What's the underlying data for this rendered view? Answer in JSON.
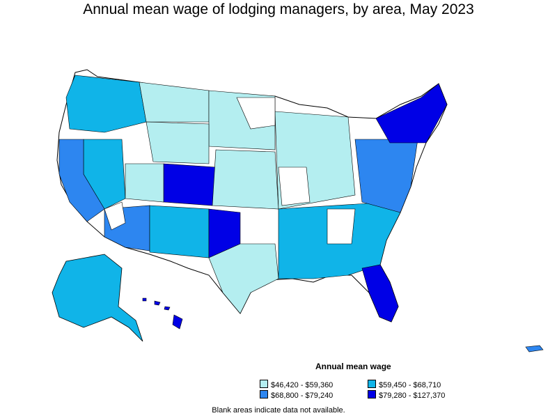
{
  "title": "Annual mean wage of lodging managers, by area, May 2023",
  "legend": {
    "title": "Annual mean wage",
    "items": [
      {
        "label": "$46,420 - $59,360",
        "color": "#b4eef0"
      },
      {
        "label": "$59,450 - $68,710",
        "color": "#10b4e8"
      },
      {
        "label": "$68,800 - $79,240",
        "color": "#2d86f0"
      },
      {
        "label": "$79,280 - $127,370",
        "color": "#0000e6"
      }
    ]
  },
  "note": "Blank areas indicate data not available."
}
